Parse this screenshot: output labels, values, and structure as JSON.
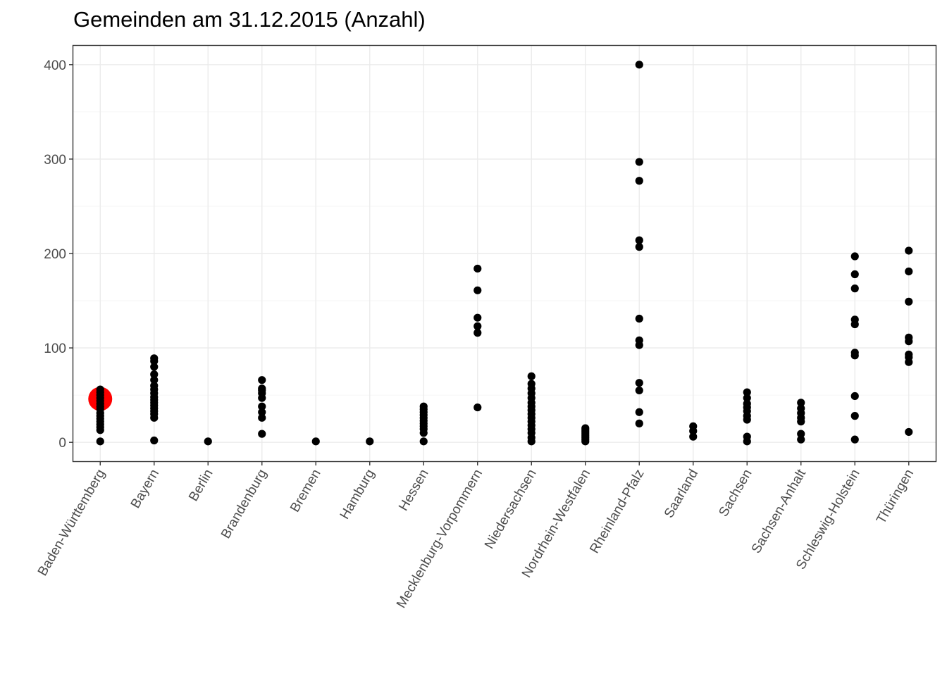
{
  "chart_data": {
    "type": "scatter",
    "title": "Gemeinden am 31.12.2015 (Anzahl)",
    "xlabel": "",
    "ylabel": "",
    "ylim": [
      -20,
      420
    ],
    "yticks": [
      0,
      100,
      200,
      300,
      400
    ],
    "grid": true,
    "colors": {
      "points": "#000000",
      "highlight": "#ff0000",
      "panel_border": "#333333",
      "grid": "#ebebeb"
    },
    "categories": [
      "Baden-Württemberg",
      "Bayern",
      "Berlin",
      "Brandenburg",
      "Bremen",
      "Hamburg",
      "Hessen",
      "Mecklenburg-Vorpommern",
      "Niedersachsen",
      "Nordrhein-Westfalen",
      "Rheinland-Pfalz",
      "Saarland",
      "Sachsen",
      "Sachsen-Anhalt",
      "Schleswig-Holstein",
      "Thüringen"
    ],
    "values": [
      [
        1,
        13,
        16,
        19,
        22,
        25,
        28,
        31,
        35,
        38,
        41,
        44,
        47,
        50,
        53,
        56
      ],
      [
        2,
        26,
        30,
        33,
        36,
        39,
        42,
        45,
        48,
        52,
        56,
        60,
        66,
        72,
        80,
        86,
        89
      ],
      [
        1
      ],
      [
        9,
        26,
        32,
        38,
        47,
        52,
        55,
        57,
        66
      ],
      [
        1
      ],
      [
        1
      ],
      [
        1,
        10,
        14,
        17,
        20,
        23,
        26,
        29,
        32,
        35,
        38
      ],
      [
        37,
        116,
        123,
        132,
        161,
        184
      ],
      [
        1,
        5,
        10,
        14,
        18,
        22,
        26,
        30,
        34,
        38,
        42,
        47,
        52,
        57,
        62,
        70
      ],
      [
        1,
        3,
        5,
        7,
        9,
        11,
        13,
        15
      ],
      [
        20,
        32,
        55,
        63,
        103,
        108,
        131,
        207,
        214,
        277,
        297,
        400
      ],
      [
        6,
        12,
        17
      ],
      [
        1,
        6,
        24,
        28,
        33,
        37,
        41,
        47,
        53
      ],
      [
        3,
        9,
        22,
        26,
        31,
        36,
        42
      ],
      [
        3,
        28,
        49,
        92,
        95,
        125,
        130,
        163,
        178,
        197
      ],
      [
        11,
        85,
        90,
        93,
        107,
        111,
        149,
        181,
        203
      ]
    ],
    "highlight": {
      "category": "Baden-Württemberg",
      "y": 46
    }
  }
}
